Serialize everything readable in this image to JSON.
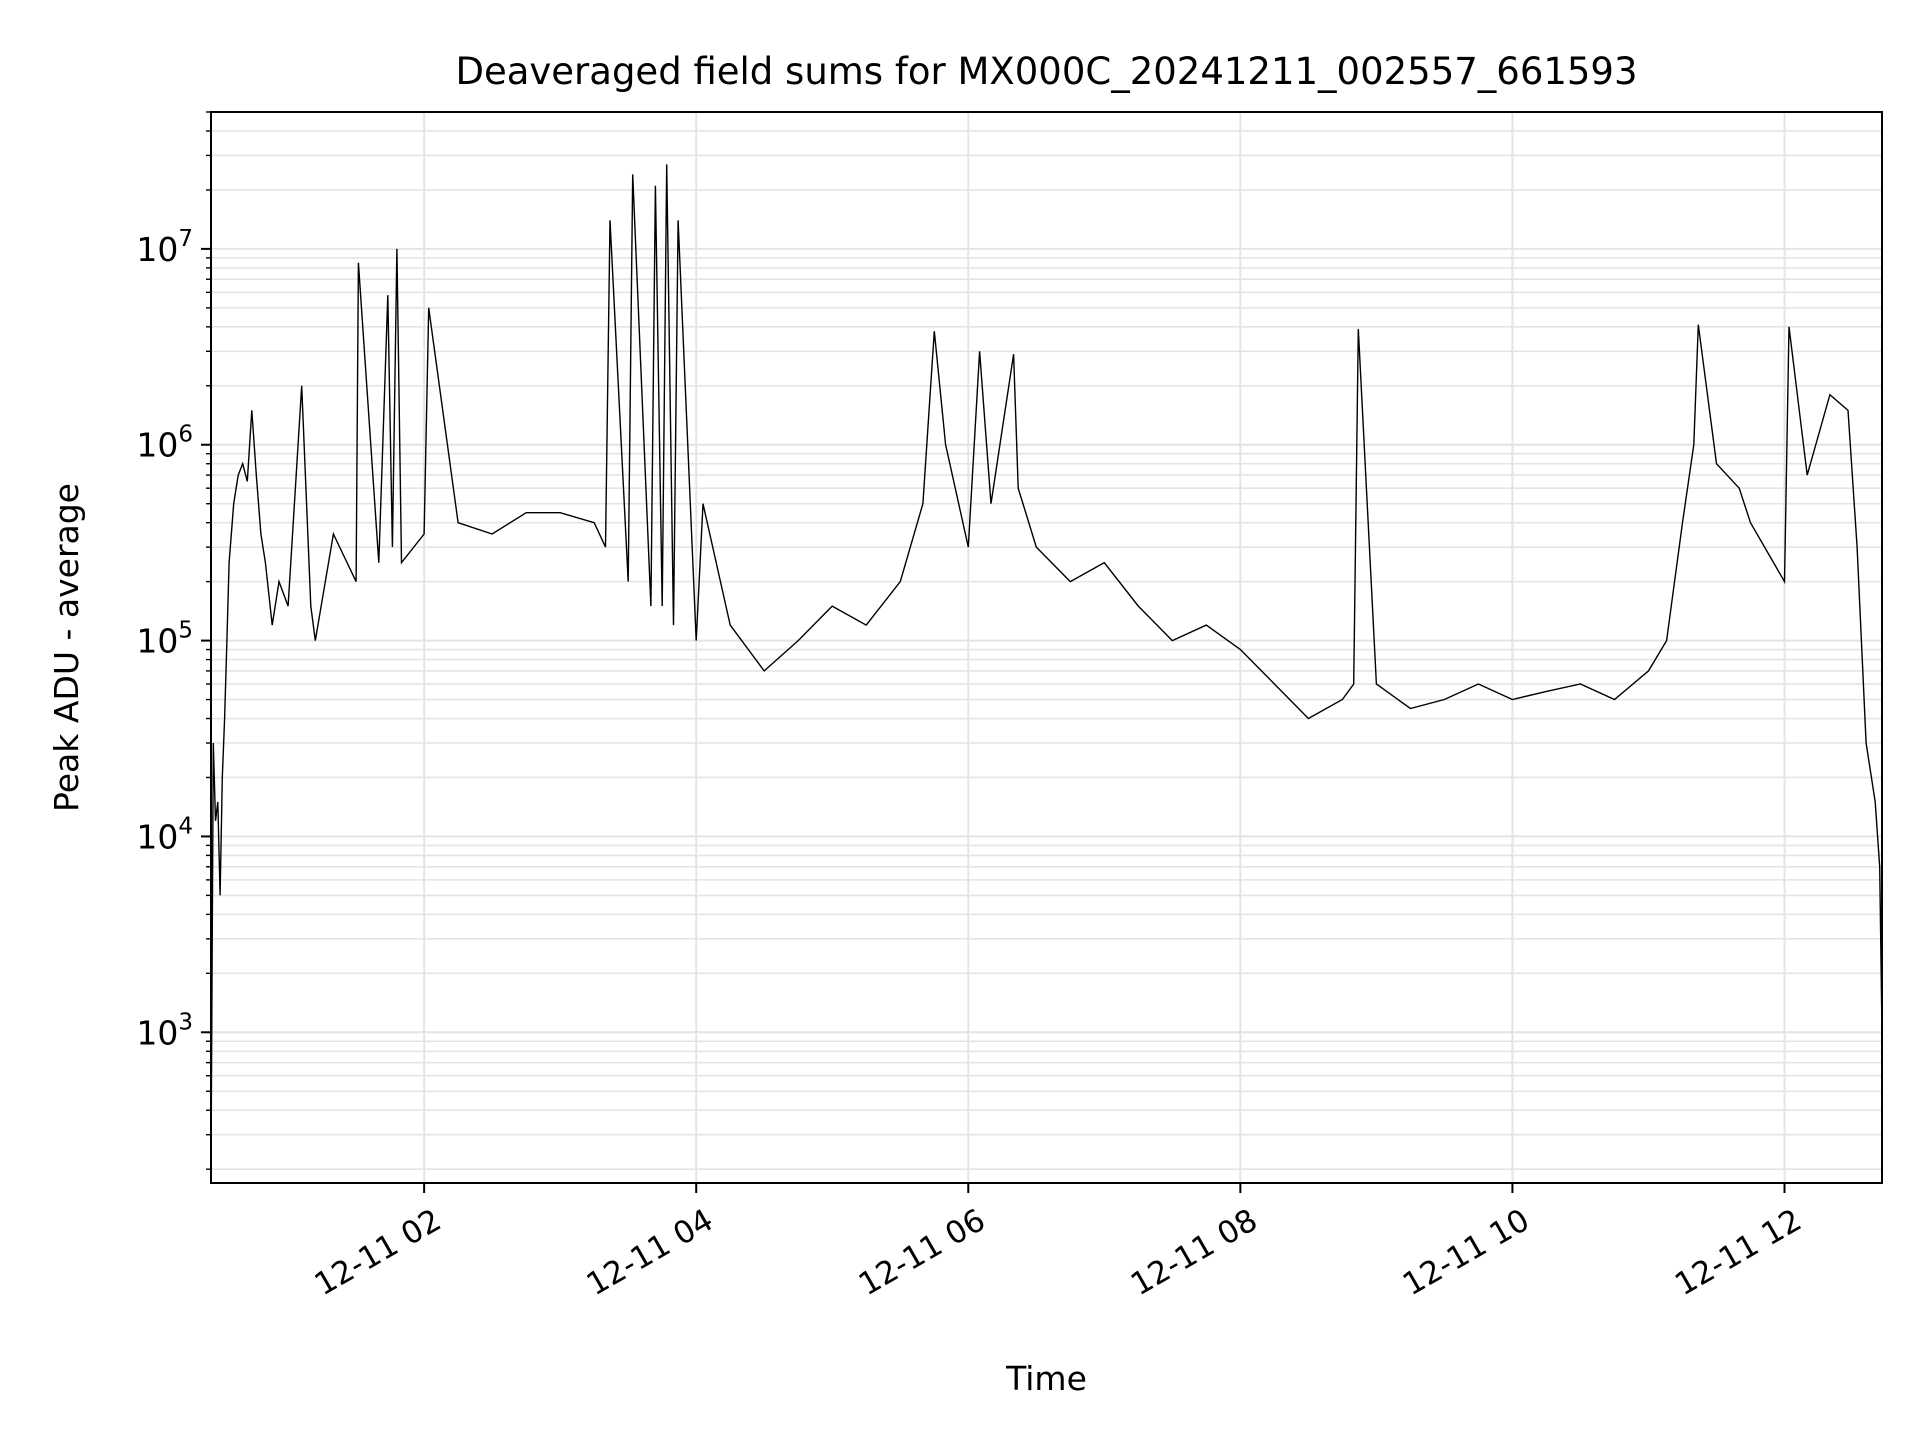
{
  "chart_data": {
    "type": "line",
    "title": "Deaveraged field sums for MX000C_20241211_002557_661593",
    "xlabel": "Time",
    "ylabel": "Peak ADU - average",
    "yscale": "log",
    "ylim": [
      170,
      50000000
    ],
    "xlim": [
      "2024-12-11 00:26",
      "2024-12-11 12:43"
    ],
    "grid": true,
    "legend": "none",
    "line_color": "#000000",
    "x_ticks": [
      {
        "value": "2024-12-11 02:00",
        "label": "12-11 02"
      },
      {
        "value": "2024-12-11 04:00",
        "label": "12-11 04"
      },
      {
        "value": "2024-12-11 06:00",
        "label": "12-11 06"
      },
      {
        "value": "2024-12-11 08:00",
        "label": "12-11 08"
      },
      {
        "value": "2024-12-11 10:00",
        "label": "12-11 10"
      },
      {
        "value": "2024-12-11 12:00",
        "label": "12-11 12"
      }
    ],
    "y_ticks": [
      {
        "value": 1000,
        "mantissa": "10",
        "exp": "3"
      },
      {
        "value": 10000,
        "mantissa": "10",
        "exp": "4"
      },
      {
        "value": 100000,
        "mantissa": "10",
        "exp": "5"
      },
      {
        "value": 1000000,
        "mantissa": "10",
        "exp": "6"
      },
      {
        "value": 10000000,
        "mantissa": "10",
        "exp": "7"
      }
    ],
    "series": [
      {
        "x": [
          "2024-12-11 00:26",
          "2024-12-11 00:27",
          "2024-12-11 00:28",
          "2024-12-11 00:29",
          "2024-12-11 00:30",
          "2024-12-11 00:31",
          "2024-12-11 00:32",
          "2024-12-11 00:33",
          "2024-12-11 00:34",
          "2024-12-11 00:36",
          "2024-12-11 00:38",
          "2024-12-11 00:40",
          "2024-12-11 00:42",
          "2024-12-11 00:44",
          "2024-12-11 00:46",
          "2024-12-11 00:48",
          "2024-12-11 00:50",
          "2024-12-11 00:53",
          "2024-12-11 00:56",
          "2024-12-11 01:00",
          "2024-12-11 01:06",
          "2024-12-11 01:10",
          "2024-12-11 01:12",
          "2024-12-11 01:20",
          "2024-12-11 01:30",
          "2024-12-11 01:31",
          "2024-12-11 01:40",
          "2024-12-11 01:44",
          "2024-12-11 01:46",
          "2024-12-11 01:48",
          "2024-12-11 01:50",
          "2024-12-11 02:00",
          "2024-12-11 02:02",
          "2024-12-11 02:15",
          "2024-12-11 02:30",
          "2024-12-11 02:45",
          "2024-12-11 03:00",
          "2024-12-11 03:15",
          "2024-12-11 03:20",
          "2024-12-11 03:22",
          "2024-12-11 03:30",
          "2024-12-11 03:32",
          "2024-12-11 03:40",
          "2024-12-11 03:42",
          "2024-12-11 03:45",
          "2024-12-11 03:47",
          "2024-12-11 03:50",
          "2024-12-11 03:52",
          "2024-12-11 04:00",
          "2024-12-11 04:03",
          "2024-12-11 04:15",
          "2024-12-11 04:30",
          "2024-12-11 04:45",
          "2024-12-11 05:00",
          "2024-12-11 05:15",
          "2024-12-11 05:30",
          "2024-12-11 05:40",
          "2024-12-11 05:45",
          "2024-12-11 05:50",
          "2024-12-11 06:00",
          "2024-12-11 06:05",
          "2024-12-11 06:10",
          "2024-12-11 06:20",
          "2024-12-11 06:22",
          "2024-12-11 06:30",
          "2024-12-11 06:45",
          "2024-12-11 07:00",
          "2024-12-11 07:15",
          "2024-12-11 07:30",
          "2024-12-11 07:45",
          "2024-12-11 08:00",
          "2024-12-11 08:15",
          "2024-12-11 08:30",
          "2024-12-11 08:45",
          "2024-12-11 08:50",
          "2024-12-11 08:52",
          "2024-12-11 09:00",
          "2024-12-11 09:15",
          "2024-12-11 09:30",
          "2024-12-11 09:45",
          "2024-12-11 10:00",
          "2024-12-11 10:15",
          "2024-12-11 10:30",
          "2024-12-11 10:45",
          "2024-12-11 11:00",
          "2024-12-11 11:08",
          "2024-12-11 11:15",
          "2024-12-11 11:20",
          "2024-12-11 11:22",
          "2024-12-11 11:30",
          "2024-12-11 11:40",
          "2024-12-11 11:45",
          "2024-12-11 12:00",
          "2024-12-11 12:02",
          "2024-12-11 12:10",
          "2024-12-11 12:20",
          "2024-12-11 12:28",
          "2024-12-11 12:32",
          "2024-12-11 12:36",
          "2024-12-11 12:40",
          "2024-12-11 12:42",
          "2024-12-11 12:43"
        ],
        "y": [
          200,
          30000,
          12000,
          15000,
          5000,
          20000,
          40000,
          100000,
          250000,
          500000,
          700000,
          800000,
          650000,
          1500000,
          700000,
          350000,
          250000,
          120000,
          200000,
          150000,
          2000000,
          150000,
          100000,
          350000,
          200000,
          8500000,
          250000,
          5800000,
          300000,
          10000000,
          250000,
          350000,
          5000000,
          400000,
          350000,
          450000,
          450000,
          400000,
          300000,
          14000000,
          200000,
          24000000,
          150000,
          21000000,
          150000,
          27000000,
          120000,
          14000000,
          100000,
          500000,
          120000,
          70000,
          100000,
          150000,
          120000,
          200000,
          500000,
          3800000,
          1000000,
          300000,
          3000000,
          500000,
          2900000,
          600000,
          300000,
          200000,
          250000,
          150000,
          100000,
          120000,
          90000,
          60000,
          40000,
          50000,
          60000,
          3900000,
          60000,
          45000,
          50000,
          60000,
          50000,
          55000,
          60000,
          50000,
          70000,
          100000,
          400000,
          1000000,
          4100000,
          800000,
          600000,
          400000,
          200000,
          4000000,
          700000,
          1800000,
          1500000,
          300000,
          30000,
          15000,
          7000,
          1000
        ]
      }
    ]
  }
}
